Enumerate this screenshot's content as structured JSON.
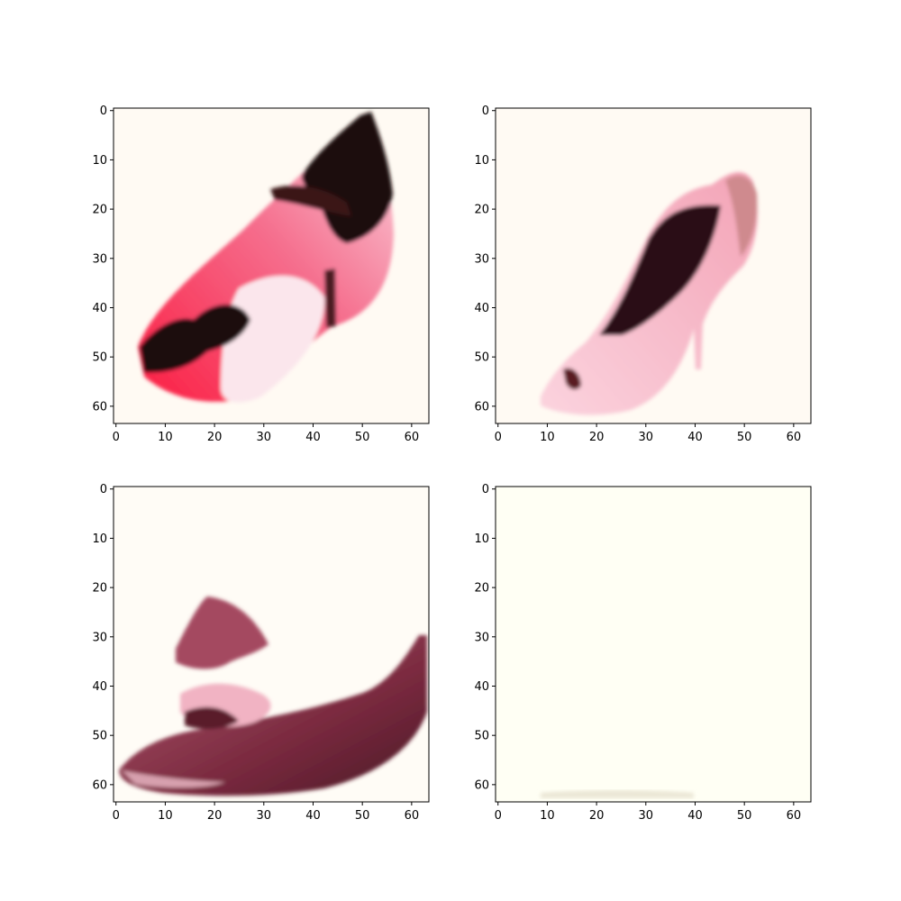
{
  "figure": {
    "rows": 2,
    "cols": 2
  },
  "chart_data": [
    {
      "type": "image",
      "panel": "top-left",
      "xlim": [
        -0.5,
        63.5
      ],
      "ylim": [
        63.5,
        -0.5
      ],
      "xticks": [
        0,
        10,
        20,
        30,
        40,
        50,
        60
      ],
      "yticks": [
        0,
        10,
        20,
        30,
        40,
        50,
        60
      ],
      "content": "red and pink high-heel shoe with black trim, rotated",
      "colors": {
        "background": "#fffaf3",
        "main": "#f7254f",
        "light": "#fbd3dd",
        "dark": "#1a0b0e"
      }
    },
    {
      "type": "image",
      "panel": "top-right",
      "xlim": [
        -0.5,
        63.5
      ],
      "ylim": [
        63.5,
        -0.5
      ],
      "xticks": [
        0,
        10,
        20,
        30,
        40,
        50,
        60
      ],
      "yticks": [
        0,
        10,
        20,
        30,
        40,
        50,
        60
      ],
      "content": "pink peep-toe high-heel pump with dark interior",
      "colors": {
        "background": "#fffaf3",
        "main": "#f6a9bd",
        "light": "#fcd9e2",
        "dark": "#2a0c12"
      }
    },
    {
      "type": "image",
      "panel": "bottom-left",
      "xlim": [
        -0.5,
        63.5
      ],
      "ylim": [
        63.5,
        -0.5
      ],
      "xticks": [
        0,
        10,
        20,
        30,
        40,
        50,
        60
      ],
      "yticks": [
        0,
        10,
        20,
        30,
        40,
        50,
        60
      ],
      "content": "distorted burgundy and pink shoe shape",
      "colors": {
        "background": "#fffcf6",
        "main": "#7a2a3f",
        "light": "#f3b9c8",
        "dark": "#3c1420"
      }
    },
    {
      "type": "image",
      "panel": "bottom-right",
      "xlim": [
        -0.5,
        63.5
      ],
      "ylim": [
        63.5,
        -0.5
      ],
      "xticks": [
        0,
        10,
        20,
        30,
        40,
        50,
        60
      ],
      "yticks": [
        0,
        10,
        20,
        30,
        40,
        50,
        60
      ],
      "content": "nearly blank cream image with faint line near bottom",
      "colors": {
        "background": "#fffff4",
        "main": "#f0ece0",
        "light": "#fffff6",
        "dark": "#e2ddcc"
      }
    }
  ]
}
